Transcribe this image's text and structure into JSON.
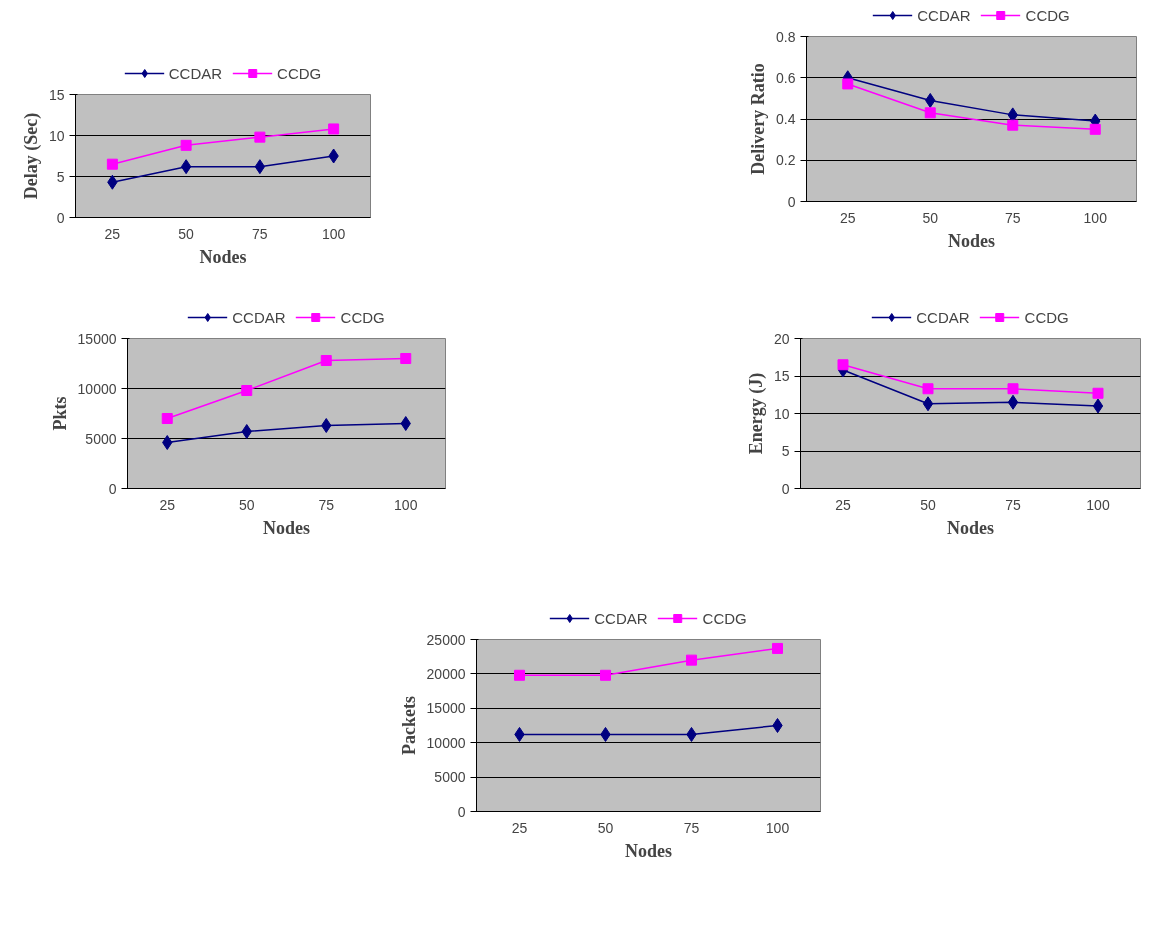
{
  "chart_data": [
    {
      "type": "line",
      "xlabel": "Nodes",
      "ylabel": "Delay (Sec)",
      "categories": [
        "25",
        "50",
        "75",
        "100"
      ],
      "ylim": [
        0,
        15
      ],
      "yticks": [
        0,
        5,
        10,
        15
      ],
      "grid": "y",
      "legend": "top",
      "series": [
        {
          "name": "CCDAR",
          "color": "#000080",
          "marker": "diamond",
          "values": [
            4.3,
            6.2,
            6.2,
            7.5
          ]
        },
        {
          "name": "CCDG",
          "color": "#ff00ff",
          "marker": "square",
          "values": [
            6.5,
            8.8,
            9.8,
            10.8
          ]
        }
      ]
    },
    {
      "type": "line",
      "xlabel": "Nodes",
      "ylabel": "Delivery Ratio",
      "categories": [
        "25",
        "50",
        "75",
        "100"
      ],
      "ylim": [
        0,
        0.8
      ],
      "yticks": [
        0,
        0.2,
        0.4,
        0.6,
        0.8
      ],
      "grid": "y",
      "legend": "top",
      "series": [
        {
          "name": "CCDAR",
          "color": "#000080",
          "marker": "diamond",
          "values": [
            0.6,
            0.49,
            0.42,
            0.39
          ]
        },
        {
          "name": "CCDG",
          "color": "#ff00ff",
          "marker": "square",
          "values": [
            0.57,
            0.43,
            0.37,
            0.35
          ]
        }
      ]
    },
    {
      "type": "line",
      "xlabel": "Nodes",
      "ylabel": "Pkts",
      "categories": [
        "25",
        "50",
        "75",
        "100"
      ],
      "ylim": [
        0,
        15000
      ],
      "yticks": [
        0,
        5000,
        10000,
        15000
      ],
      "grid": "y",
      "legend": "top",
      "series": [
        {
          "name": "CCDAR",
          "color": "#000080",
          "marker": "diamond",
          "values": [
            4600,
            5700,
            6300,
            6500
          ]
        },
        {
          "name": "CCDG",
          "color": "#ff00ff",
          "marker": "square",
          "values": [
            7000,
            9800,
            12800,
            13000
          ]
        }
      ]
    },
    {
      "type": "line",
      "xlabel": "Nodes",
      "ylabel": "Energy (J)",
      "categories": [
        "25",
        "50",
        "75",
        "100"
      ],
      "ylim": [
        0,
        20
      ],
      "yticks": [
        0,
        5,
        10,
        15,
        20
      ],
      "grid": "y",
      "legend": "top",
      "series": [
        {
          "name": "CCDAR",
          "color": "#000080",
          "marker": "diamond",
          "values": [
            15.8,
            11.3,
            11.5,
            11
          ]
        },
        {
          "name": "CCDG",
          "color": "#ff00ff",
          "marker": "square",
          "values": [
            16.5,
            13.3,
            13.3,
            12.7
          ]
        }
      ]
    },
    {
      "type": "line",
      "xlabel": "Nodes",
      "ylabel": "Packets",
      "categories": [
        "25",
        "50",
        "75",
        "100"
      ],
      "ylim": [
        0,
        25000
      ],
      "yticks": [
        0,
        5000,
        10000,
        15000,
        20000,
        25000
      ],
      "grid": "y",
      "legend": "top",
      "series": [
        {
          "name": "CCDAR",
          "color": "#000080",
          "marker": "diamond",
          "values": [
            11200,
            11200,
            11200,
            12500
          ]
        },
        {
          "name": "CCDG",
          "color": "#ff00ff",
          "marker": "square",
          "values": [
            19800,
            19800,
            22000,
            23700
          ]
        }
      ]
    }
  ]
}
